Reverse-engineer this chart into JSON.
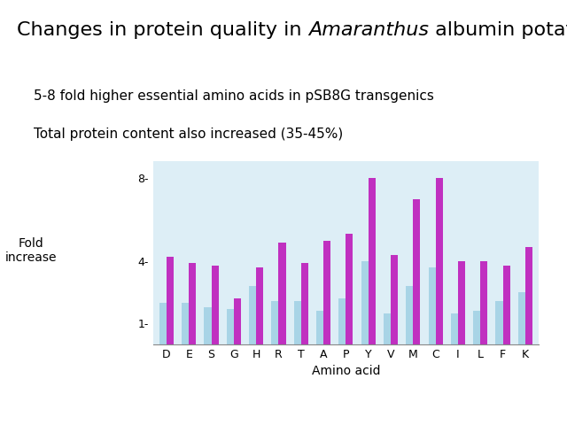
{
  "subtitle1": "5-8 fold higher essential amino acids in pSB8G transgenics",
  "subtitle2": "Total protein content also increased (35-45%)",
  "ylabel": "Fold\nincrease",
  "xlabel": "Amino acid",
  "amino_acids": [
    "D",
    "E",
    "S",
    "G",
    "H",
    "R",
    "T",
    "A",
    "P",
    "Y",
    "V",
    "M",
    "C",
    "I",
    "L",
    "F",
    "K"
  ],
  "blue_values": [
    2.0,
    2.0,
    1.8,
    1.7,
    2.8,
    2.1,
    2.1,
    1.6,
    2.2,
    4.0,
    1.5,
    2.8,
    3.7,
    1.5,
    1.6,
    2.1,
    2.5
  ],
  "magenta_values": [
    4.2,
    3.9,
    3.8,
    2.2,
    3.7,
    4.9,
    3.9,
    5.0,
    5.3,
    8.0,
    4.3,
    7.0,
    8.0,
    4.0,
    4.0,
    3.8,
    4.7
  ],
  "blue_color": "#a8d4e6",
  "magenta_color": "#c030c0",
  "bg_color": "#ddeef6",
  "yticks": [
    1,
    4,
    8
  ],
  "ylim": [
    0,
    8.8
  ],
  "title_fontsize": 16,
  "subtitle_fontsize": 11,
  "axis_label_fontsize": 10,
  "tick_fontsize": 9,
  "ylabel_fontsize": 10
}
